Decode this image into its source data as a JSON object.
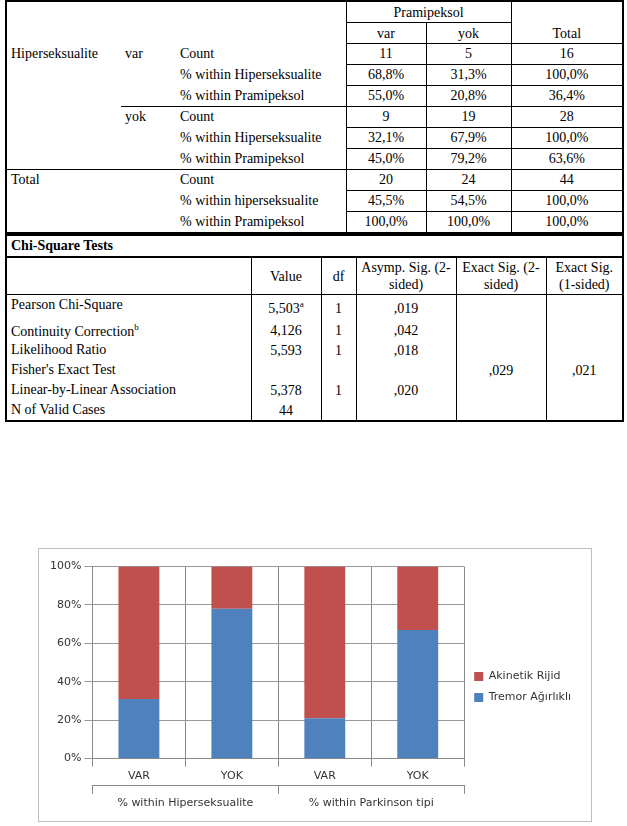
{
  "crosstab": {
    "column_header": "Pramipeksol",
    "columns": [
      "var",
      "yok"
    ],
    "total_column": "Total",
    "row_variable": "Hiperseksualite",
    "groups": [
      {
        "level": "var",
        "rows": [
          {
            "stat": "Count",
            "cells": [
              "11",
              "5",
              "16"
            ]
          },
          {
            "stat": "% within Hiperseksualite",
            "cells": [
              "68,8%",
              "31,3%",
              "100,0%"
            ]
          },
          {
            "stat": "% within Pramipeksol",
            "cells": [
              "55,0%",
              "20,8%",
              "36,4%"
            ]
          }
        ]
      },
      {
        "level": "yok",
        "rows": [
          {
            "stat": "Count",
            "cells": [
              "9",
              "19",
              "28"
            ]
          },
          {
            "stat": "% within Hiperseksualite",
            "cells": [
              "32,1%",
              "67,9%",
              "100,0%"
            ]
          },
          {
            "stat": "% within Pramipeksol",
            "cells": [
              "45,0%",
              "79,2%",
              "63,6%"
            ]
          }
        ]
      }
    ],
    "total": {
      "label": "Total",
      "rows": [
        {
          "stat": "Count",
          "cells": [
            "20",
            "24",
            "44"
          ]
        },
        {
          "stat": "% within hiperseksualite",
          "cells": [
            "45,5%",
            "54,5%",
            "100,0%"
          ]
        },
        {
          "stat": "% within Pramipeksol",
          "cells": [
            "100,0%",
            "100,0%",
            "100,0%"
          ]
        }
      ]
    }
  },
  "chi_square": {
    "title": "Chi-Square Tests",
    "headers": [
      "Value",
      "df",
      "Asymp. Sig. (2-sided)",
      "Exact Sig. (2-sided)",
      "Exact Sig. (1-sided)"
    ],
    "rows": [
      {
        "label": "Pearson Chi-Square",
        "cells": [
          "5,503",
          "1",
          ",019",
          null,
          null
        ],
        "value_sup": "a"
      },
      {
        "label": "Continuity Correction",
        "label_sup": "b",
        "cells": [
          "4,126",
          "1",
          ",042",
          null,
          null
        ]
      },
      {
        "label": "Likelihood Ratio",
        "cells": [
          "5,593",
          "1",
          ",018",
          null,
          null
        ]
      },
      {
        "label": "Fisher's Exact Test",
        "cells": [
          null,
          null,
          null,
          ",029",
          ",021"
        ]
      },
      {
        "label": "Linear-by-Linear Association",
        "cells": [
          "5,378",
          "1",
          ",020",
          null,
          null
        ]
      },
      {
        "label": "N of Valid Cases",
        "cells": [
          "44",
          null,
          null,
          null,
          null
        ]
      }
    ]
  },
  "chart_data": {
    "type": "bar",
    "stacked": true,
    "categories": [
      "VAR",
      "YOK",
      "VAR",
      "YOK"
    ],
    "groups": [
      "% within Hiperseksualite",
      "% within Parkinson tipi"
    ],
    "series": [
      {
        "name": "Tremor Ağırlıklı",
        "color": "#4f81bd",
        "values": [
          31,
          78,
          21,
          67
        ]
      },
      {
        "name": "Akinetik Rijid",
        "color": "#c0504d",
        "values": [
          69,
          22,
          79,
          33
        ]
      }
    ],
    "ylim": [
      0,
      100
    ],
    "yticks": [
      {
        "value": 0,
        "label": "0%"
      },
      {
        "value": 20,
        "label": "20%"
      },
      {
        "value": 40,
        "label": "40%"
      },
      {
        "value": 60,
        "label": "60%"
      },
      {
        "value": 80,
        "label": "80%"
      },
      {
        "value": 100,
        "label": "100%"
      }
    ],
    "grid": true,
    "legend": "right"
  }
}
